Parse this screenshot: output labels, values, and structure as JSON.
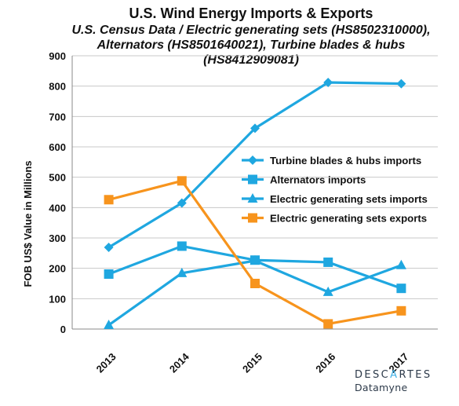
{
  "chart_data": {
    "type": "line",
    "title": "U.S. Wind Energy Imports & Exports",
    "subtitle": "U.S. Census Data /  Electric generating sets (HS8502310000), Alternators (HS8501640021), Turbine blades & hubs (HS8412909081)",
    "xlabel": "",
    "ylabel": "FOB US$ Value in Millions",
    "categories": [
      "2013",
      "2014",
      "2015",
      "2016",
      "2017"
    ],
    "ylim": [
      0,
      900
    ],
    "yticks": [
      "0",
      "100",
      "200",
      "300",
      "400",
      "500",
      "600",
      "700",
      "800",
      "900"
    ],
    "grid": "horizontal",
    "legend_position": "right",
    "series": [
      {
        "name": "Turbine blades & hubs imports",
        "marker": "diamond",
        "color": "#1fa7e0",
        "values": [
          269,
          415,
          661,
          812,
          808
        ]
      },
      {
        "name": "Alternators imports",
        "marker": "square",
        "color": "#1fa7e0",
        "values": [
          181,
          273,
          227,
          220,
          134
        ]
      },
      {
        "name": "Electric generating sets imports",
        "marker": "triangle",
        "color": "#1fa7e0",
        "values": [
          13,
          184,
          225,
          122,
          210
        ]
      },
      {
        "name": "Electric generating sets exports",
        "marker": "square",
        "color": "#f7941d",
        "values": [
          426,
          488,
          150,
          17,
          60
        ]
      }
    ]
  },
  "logo": {
    "brand_a": "DESC",
    "brand_b": "RTES",
    "product": "Datamyne"
  }
}
